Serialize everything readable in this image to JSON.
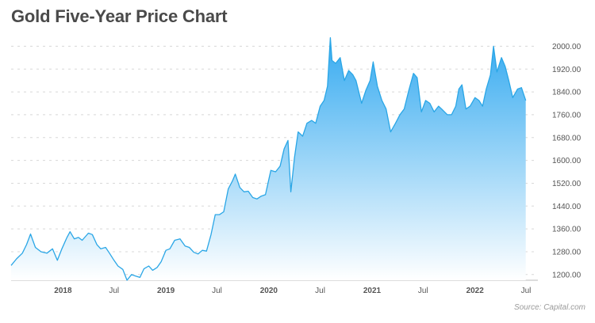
{
  "title": "Gold Five-Year Price Chart",
  "source": "Source: Capital.com",
  "colors": {
    "line": "#2aa6e6",
    "fill_top": "#35aaf0",
    "fill_bottom": "#ffffff",
    "grid": "#d8d8d8",
    "baseline": "#bbbbbb"
  },
  "chart_data": {
    "type": "area",
    "title": "Gold Five-Year Price Chart",
    "xlabel": "",
    "ylabel": "",
    "ylim": [
      1180,
      2040
    ],
    "yticks": [
      1200,
      1280,
      1360,
      1440,
      1520,
      1600,
      1680,
      1760,
      1840,
      1920,
      2000
    ],
    "ytick_labels": [
      "1200.00",
      "1280.00",
      "1360.00",
      "1440.00",
      "1520.00",
      "1600.00",
      "1680.00",
      "1760.00",
      "1840.00",
      "1920.00",
      "2000.00"
    ],
    "grid": "horizontal dashed",
    "y_axis_position": "right",
    "xlim": [
      "2017-07-01",
      "2022-07-15"
    ],
    "xticks": [
      "2018-01-01",
      "2018-07-01",
      "2019-01-01",
      "2019-07-01",
      "2020-01-01",
      "2020-07-01",
      "2021-01-01",
      "2021-07-01",
      "2022-01-01",
      "2022-07-01"
    ],
    "xtick_labels": [
      "2018",
      "Jul",
      "2019",
      "Jul",
      "2020",
      "Jul",
      "2021",
      "Jul",
      "2022",
      "Jul"
    ],
    "series": [
      {
        "x": [
          "2017-07-01",
          "2017-07-20",
          "2017-08-10",
          "2017-08-25",
          "2017-09-08",
          "2017-09-25",
          "2017-10-15",
          "2017-11-05",
          "2017-11-25",
          "2017-12-12",
          "2017-12-28",
          "2018-01-15",
          "2018-01-26",
          "2018-02-10",
          "2018-02-25",
          "2018-03-10",
          "2018-04-01",
          "2018-04-15",
          "2018-05-01",
          "2018-05-15",
          "2018-06-01",
          "2018-06-15",
          "2018-07-01",
          "2018-07-15",
          "2018-08-01",
          "2018-08-16",
          "2018-09-01",
          "2018-09-15",
          "2018-10-01",
          "2018-10-15",
          "2018-11-01",
          "2018-11-15",
          "2018-12-01",
          "2018-12-15",
          "2019-01-01",
          "2019-01-15",
          "2019-02-01",
          "2019-02-20",
          "2019-03-10",
          "2019-03-25",
          "2019-04-10",
          "2019-04-25",
          "2019-05-10",
          "2019-05-25",
          "2019-06-10",
          "2019-06-25",
          "2019-07-10",
          "2019-07-25",
          "2019-08-10",
          "2019-08-25",
          "2019-09-04",
          "2019-09-20",
          "2019-10-05",
          "2019-10-20",
          "2019-11-05",
          "2019-11-20",
          "2019-12-05",
          "2019-12-20",
          "2020-01-08",
          "2020-01-25",
          "2020-02-10",
          "2020-02-24",
          "2020-03-09",
          "2020-03-19",
          "2020-04-01",
          "2020-04-14",
          "2020-04-30",
          "2020-05-15",
          "2020-06-01",
          "2020-06-15",
          "2020-07-01",
          "2020-07-15",
          "2020-07-27",
          "2020-08-06",
          "2020-08-12",
          "2020-08-25",
          "2020-09-10",
          "2020-09-25",
          "2020-10-10",
          "2020-10-25",
          "2020-11-05",
          "2020-11-25",
          "2020-12-10",
          "2020-12-25",
          "2021-01-05",
          "2021-01-20",
          "2021-02-05",
          "2021-02-20",
          "2021-03-08",
          "2021-03-25",
          "2021-04-10",
          "2021-04-25",
          "2021-05-10",
          "2021-05-28",
          "2021-06-10",
          "2021-06-25",
          "2021-07-10",
          "2021-07-25",
          "2021-08-09",
          "2021-08-25",
          "2021-09-05",
          "2021-09-25",
          "2021-10-10",
          "2021-10-25",
          "2021-11-05",
          "2021-11-16",
          "2021-11-30",
          "2021-12-15",
          "2022-01-01",
          "2022-01-15",
          "2022-01-28",
          "2022-02-10",
          "2022-02-25",
          "2022-03-08",
          "2022-03-20",
          "2022-04-05",
          "2022-04-18",
          "2022-05-01",
          "2022-05-15",
          "2022-06-01",
          "2022-06-15",
          "2022-06-30"
        ],
        "y": [
          1232,
          1255,
          1275,
          1305,
          1342,
          1295,
          1280,
          1275,
          1290,
          1250,
          1290,
          1330,
          1350,
          1325,
          1330,
          1320,
          1345,
          1340,
          1305,
          1290,
          1295,
          1275,
          1250,
          1230,
          1218,
          1180,
          1200,
          1195,
          1190,
          1220,
          1230,
          1215,
          1225,
          1245,
          1285,
          1290,
          1320,
          1325,
          1300,
          1295,
          1278,
          1272,
          1285,
          1282,
          1340,
          1410,
          1410,
          1420,
          1500,
          1528,
          1552,
          1505,
          1490,
          1492,
          1470,
          1465,
          1475,
          1480,
          1565,
          1560,
          1580,
          1640,
          1670,
          1490,
          1610,
          1700,
          1685,
          1730,
          1740,
          1730,
          1790,
          1810,
          1860,
          2030,
          1950,
          1940,
          1960,
          1880,
          1915,
          1900,
          1880,
          1800,
          1845,
          1880,
          1945,
          1860,
          1810,
          1780,
          1700,
          1730,
          1760,
          1780,
          1840,
          1905,
          1890,
          1770,
          1810,
          1800,
          1770,
          1790,
          1780,
          1760,
          1760,
          1790,
          1850,
          1865,
          1780,
          1790,
          1820,
          1810,
          1790,
          1850,
          1900,
          2000,
          1910,
          1960,
          1930,
          1880,
          1820,
          1850,
          1855,
          1810
        ]
      }
    ]
  }
}
